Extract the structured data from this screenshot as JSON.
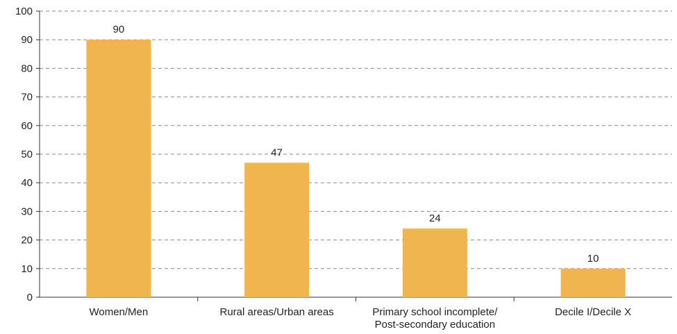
{
  "chart_data": {
    "type": "bar",
    "categories": [
      [
        "Women/Men"
      ],
      [
        "Rural areas/Urban areas"
      ],
      [
        "Primary school incomplete/",
        "Post-secondary education"
      ],
      [
        "Decile I/Decile X"
      ]
    ],
    "values": [
      90,
      47,
      24,
      10
    ],
    "data_labels": [
      "90",
      "47",
      "24",
      "10"
    ],
    "ylim": [
      0,
      100
    ],
    "yticks": [
      "0",
      "10",
      "20",
      "30",
      "40",
      "50",
      "60",
      "70",
      "80",
      "90",
      "100"
    ],
    "grid": true,
    "bar_color": "#F0B54E",
    "title": "",
    "xlabel": "",
    "ylabel": ""
  }
}
